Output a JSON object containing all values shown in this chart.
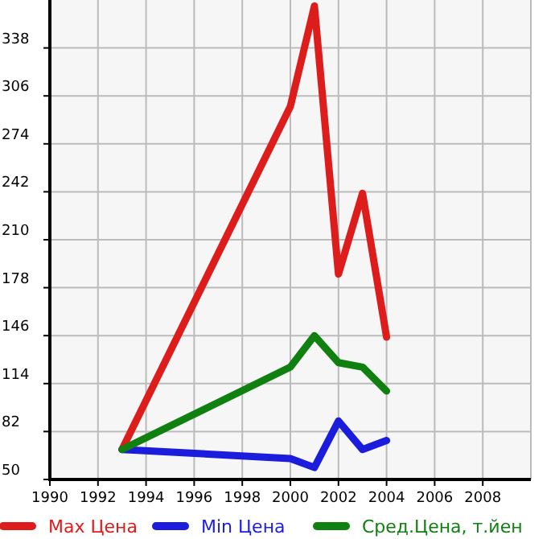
{
  "chart_data": {
    "type": "line",
    "x": [
      1993,
      2000,
      2001,
      2002,
      2003,
      2004
    ],
    "series": [
      {
        "name": "Max Цена",
        "color": "#dd1c1c",
        "values": [
          70,
          299,
          366,
          187,
          241,
          145
        ]
      },
      {
        "name": "Min Цена",
        "color": "#1c1cdd",
        "values": [
          70,
          64,
          58,
          89,
          70,
          76
        ]
      },
      {
        "name": "Сред.Цена, т.йен",
        "color": "#108010",
        "values": [
          70,
          125,
          146,
          128,
          125,
          109
        ]
      }
    ],
    "xlim": [
      1990,
      2010
    ],
    "xticks": [
      1990,
      1992,
      1994,
      1996,
      1998,
      2000,
      2002,
      2004,
      2006,
      2008
    ],
    "ylim": [
      50,
      370
    ],
    "yticks": [
      50,
      82,
      114,
      146,
      178,
      210,
      242,
      274,
      306,
      338
    ],
    "grid": true,
    "legend": "bottom",
    "marker": "none",
    "line_style": "solid"
  }
}
